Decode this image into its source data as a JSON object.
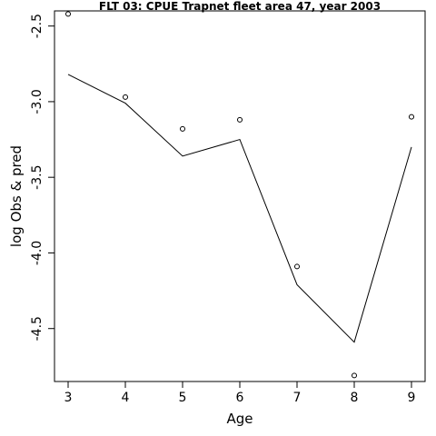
{
  "chart_data": {
    "type": "line",
    "title": "FLT 03: CPUE Trapnet fleet area 47, year 2003",
    "xlabel": "Age",
    "ylabel": "log Obs & pred",
    "x": [
      3,
      4,
      5,
      6,
      7,
      8,
      9
    ],
    "xlim": [
      3,
      9
    ],
    "ylim": [
      -4.85,
      -2.4
    ],
    "xticks": [
      3,
      4,
      5,
      6,
      7,
      8,
      9
    ],
    "yticks": [
      -2.5,
      -3.0,
      -3.5,
      -4.0,
      -4.5
    ],
    "ytick_labels": [
      "-2.5",
      "-3.0",
      "-3.5",
      "-4.0",
      "-4.5"
    ],
    "grid": false,
    "series": [
      {
        "role": "observed",
        "marker": "circle",
        "values": [
          -2.42,
          -2.97,
          -3.18,
          -3.12,
          -4.09,
          -4.81,
          -3.1
        ]
      },
      {
        "role": "predicted",
        "marker": "line",
        "values": [
          -2.82,
          -3.01,
          -3.36,
          -3.25,
          -4.21,
          -4.59,
          -3.3
        ]
      }
    ]
  }
}
